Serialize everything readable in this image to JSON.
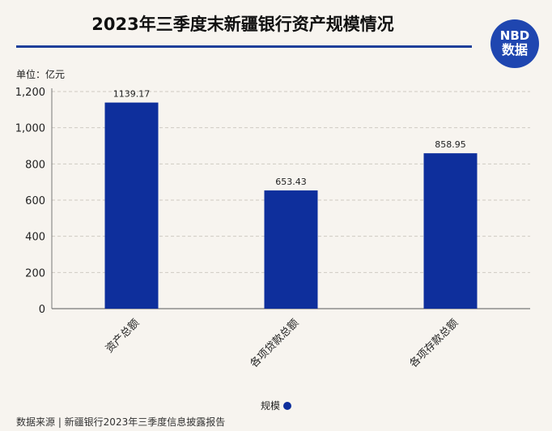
{
  "header": {
    "title": "2023年三季度末新疆银行资产规模情况",
    "logo_top": "NBD",
    "logo_bottom": "数据",
    "unit_label": "单位：亿元"
  },
  "footer": {
    "source": "数据来源 | 新疆银行2023年三季度信息披露报告"
  },
  "chart_data": {
    "type": "bar",
    "title": "2023年三季度末新疆银行资产规模情况",
    "xlabel": "",
    "ylabel": "",
    "unit": "亿元",
    "categories": [
      "资产总额",
      "各项贷款总额",
      "各项存款总额"
    ],
    "series": [
      {
        "name": "规模",
        "values": [
          1139.17,
          653.43,
          858.95
        ],
        "labels": [
          "1139.17",
          "653.43",
          "858.95"
        ]
      }
    ],
    "ylim": [
      0,
      1200
    ],
    "yticks": [
      0,
      200,
      400,
      600,
      800,
      1000,
      1200
    ],
    "ytick_labels": [
      "0",
      "200",
      "400",
      "600",
      "800",
      "1,000",
      "1,200"
    ],
    "grid": true,
    "legend": "bottom-center",
    "colors": {
      "bar": "#0e2f9c",
      "accent": "#1e3f9a",
      "logo": "#1f46b0"
    }
  }
}
